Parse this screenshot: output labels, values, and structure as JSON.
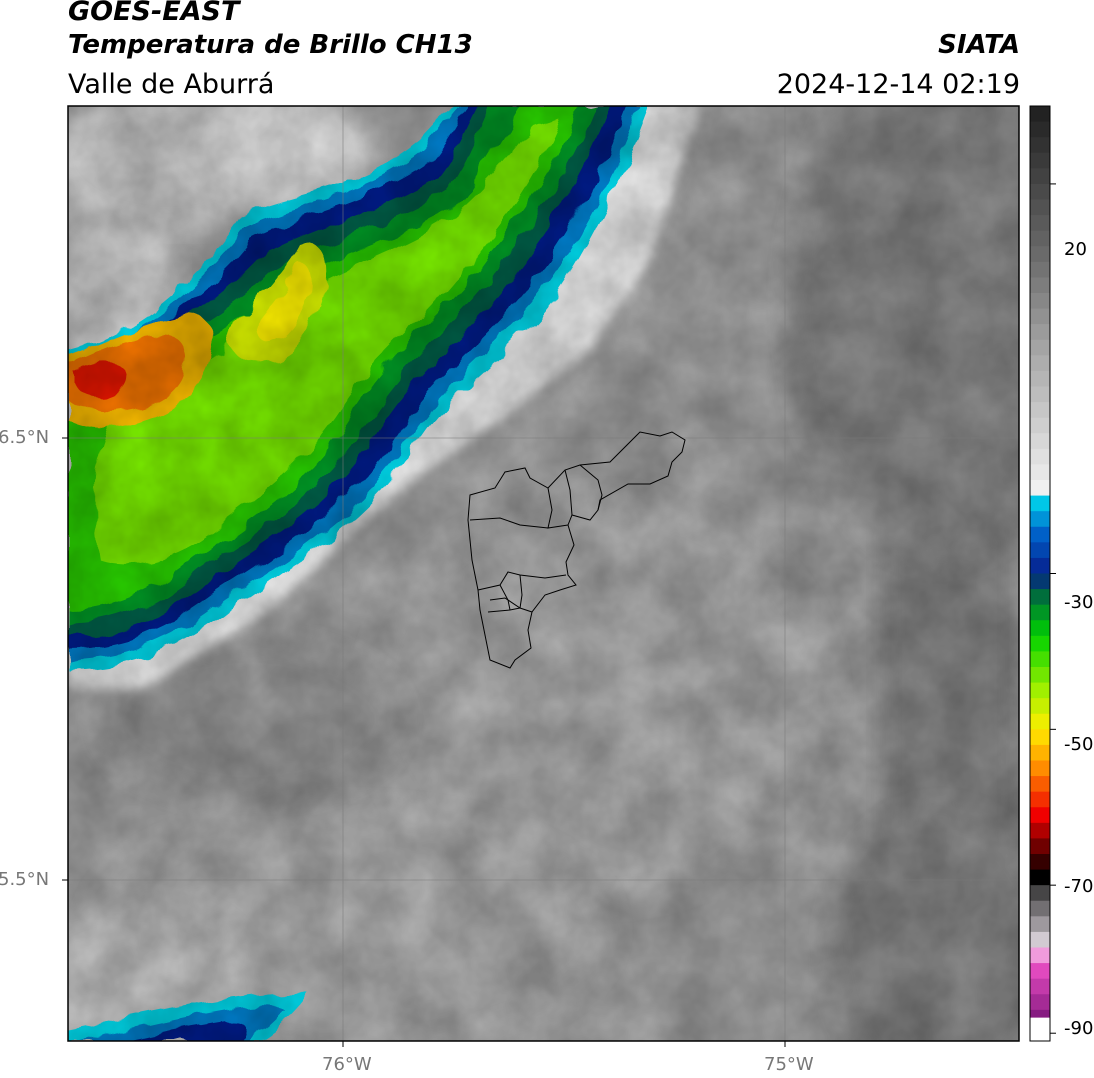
{
  "header": {
    "satellite": "GOES-EAST",
    "product": "Temperatura de Brillo CH13",
    "region": "Valle de Aburrá",
    "organization": "SIATA",
    "timestamp": "2024-12-14 02:19"
  },
  "map": {
    "lat_ticks": [
      {
        "value": 6.5,
        "label": "6.5°N"
      },
      {
        "value": 5.5,
        "label": "5.5°N"
      }
    ],
    "lon_ticks": [
      {
        "value": -76.0,
        "label": "76°W"
      },
      {
        "value": -75.0,
        "label": "75°W"
      }
    ],
    "gridlines": true,
    "overlay": "municipal-boundaries"
  },
  "colorbar": {
    "min": -90,
    "max": 30,
    "ticks": [
      {
        "value": 20,
        "label": "20"
      },
      {
        "value": -30,
        "label": "-30"
      },
      {
        "value": -50,
        "label": "-50"
      },
      {
        "value": -70,
        "label": "-70"
      },
      {
        "value": -90,
        "label": "-90"
      }
    ],
    "colors": {
      "warm_dark": "#1e1e1e",
      "mid_gray": "#a0a0a0",
      "cold_white": "#f4f4f4",
      "cyan": "#00e0f0",
      "blue": "#0060c8",
      "navy": "#061e8c",
      "dark_green": "#006e3c",
      "green": "#00d200",
      "yellow_green": "#a0f000",
      "yellow": "#ffee00",
      "orange": "#ff8c00",
      "red": "#f00000",
      "dark_red": "#500000",
      "pink": "#f050c8",
      "purple": "#781478"
    }
  }
}
